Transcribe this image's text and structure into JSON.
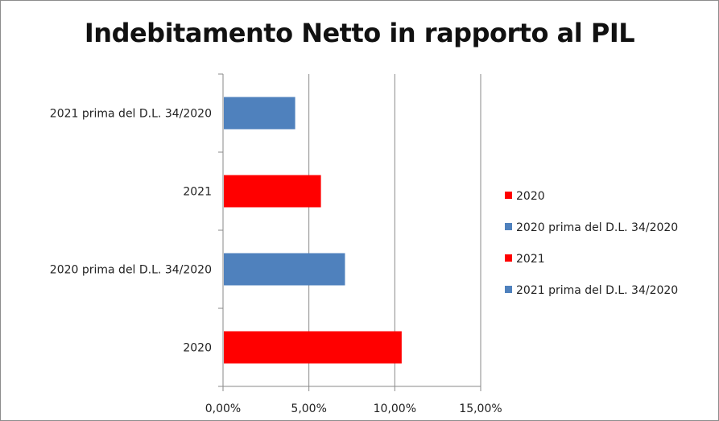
{
  "chart_data": {
    "type": "bar",
    "orientation": "horizontal",
    "title": "Indebitamento Netto in rapporto al PIL",
    "xlabel": "",
    "ylabel": "",
    "categories": [
      "2020",
      "2020 prima del D.L. 34/2020",
      "2021",
      "2021 prima del D.L. 34/2020"
    ],
    "values": [
      10.4,
      7.1,
      5.7,
      4.2
    ],
    "bar_colors": [
      "#ff0000",
      "#4f81bd",
      "#ff0000",
      "#4f81bd"
    ],
    "xlim": [
      0,
      15
    ],
    "x_ticks": [
      0,
      5,
      10,
      15
    ],
    "x_tick_labels": [
      "0,00%",
      "5,00%",
      "10,00%",
      "15,00%"
    ],
    "grid": "vertical",
    "legend": {
      "placement": "right",
      "entries": [
        {
          "label": "2020",
          "color": "#ff0000"
        },
        {
          "label": "2020 prima del D.L. 34/2020",
          "color": "#4f81bd"
        },
        {
          "label": "2021",
          "color": "#ff0000"
        },
        {
          "label": "2021 prima del D.L. 34/2020",
          "color": "#4f81bd"
        }
      ]
    }
  }
}
